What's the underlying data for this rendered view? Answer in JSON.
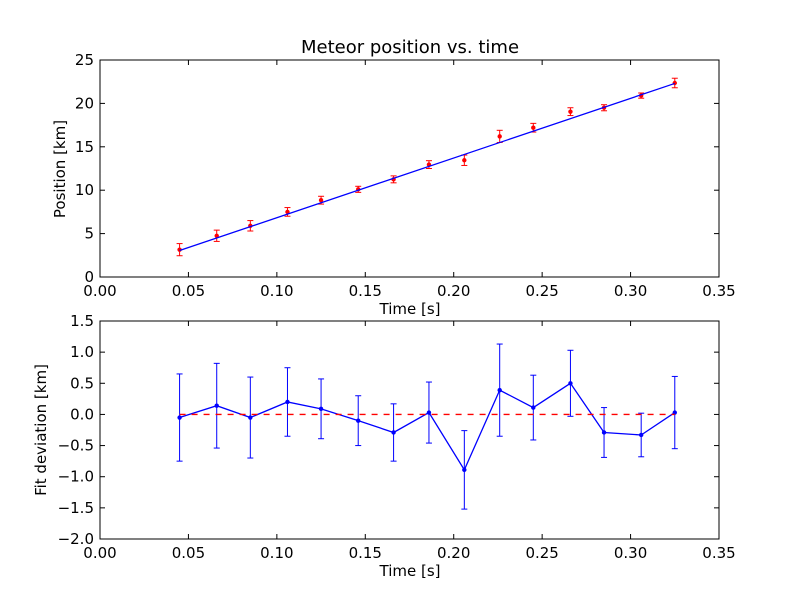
{
  "chart_data": [
    {
      "type": "scatter",
      "title": "Meteor position vs. time",
      "xlabel": "Time [s]",
      "ylabel": "Position [km]",
      "xlim": [
        0,
        0.35
      ],
      "ylim": [
        0,
        25
      ],
      "xticks": [
        "0.00",
        "0.05",
        "0.10",
        "0.15",
        "0.20",
        "0.25",
        "0.30",
        "0.35"
      ],
      "yticks": [
        "0",
        "5",
        "10",
        "15",
        "20",
        "25"
      ],
      "grid": false,
      "series": [
        {
          "kind": "errorbar-points",
          "color": "#ff0000",
          "x": [
            0.045,
            0.066,
            0.085,
            0.106,
            0.125,
            0.146,
            0.166,
            0.186,
            0.206,
            0.226,
            0.245,
            0.266,
            0.285,
            0.306,
            0.325
          ],
          "y": [
            3.15,
            4.75,
            5.9,
            7.5,
            8.85,
            10.1,
            11.25,
            12.95,
            13.45,
            16.2,
            17.2,
            19.05,
            19.5,
            20.9,
            22.35
          ],
          "yerr": [
            0.7,
            0.65,
            0.6,
            0.5,
            0.45,
            0.35,
            0.4,
            0.45,
            0.6,
            0.7,
            0.5,
            0.45,
            0.35,
            0.3,
            0.55
          ]
        },
        {
          "kind": "fit-line",
          "color": "#0000ff",
          "x": [
            0.045,
            0.325
          ],
          "y": [
            3.05,
            22.3
          ]
        }
      ]
    },
    {
      "type": "line",
      "xlabel": "Time [s]",
      "ylabel": "Fit deviation [km]",
      "xlim": [
        0,
        0.35
      ],
      "ylim": [
        -2.0,
        1.5
      ],
      "xticks": [
        "0.00",
        "0.05",
        "0.10",
        "0.15",
        "0.20",
        "0.25",
        "0.30",
        "0.35"
      ],
      "yticks": [
        "−2.0",
        "−1.5",
        "−1.0",
        "−0.5",
        "0.0",
        "0.5",
        "1.0",
        "1.5"
      ],
      "grid": false,
      "series": [
        {
          "kind": "errorbar-line",
          "color": "#0000ff",
          "x": [
            0.045,
            0.066,
            0.085,
            0.106,
            0.125,
            0.146,
            0.166,
            0.186,
            0.206,
            0.226,
            0.245,
            0.266,
            0.285,
            0.306,
            0.325
          ],
          "y": [
            -0.05,
            0.14,
            -0.05,
            0.2,
            0.09,
            -0.1,
            -0.29,
            0.03,
            -0.89,
            0.39,
            0.11,
            0.5,
            -0.29,
            -0.33,
            0.03
          ],
          "yerr": [
            0.7,
            0.68,
            0.65,
            0.55,
            0.48,
            0.4,
            0.46,
            0.49,
            0.63,
            0.74,
            0.52,
            0.53,
            0.4,
            0.35,
            0.58
          ]
        },
        {
          "kind": "zero-line",
          "color": "#ff0000",
          "style": "dashed",
          "x": [
            0.045,
            0.325
          ],
          "y": [
            0,
            0
          ]
        }
      ]
    }
  ]
}
